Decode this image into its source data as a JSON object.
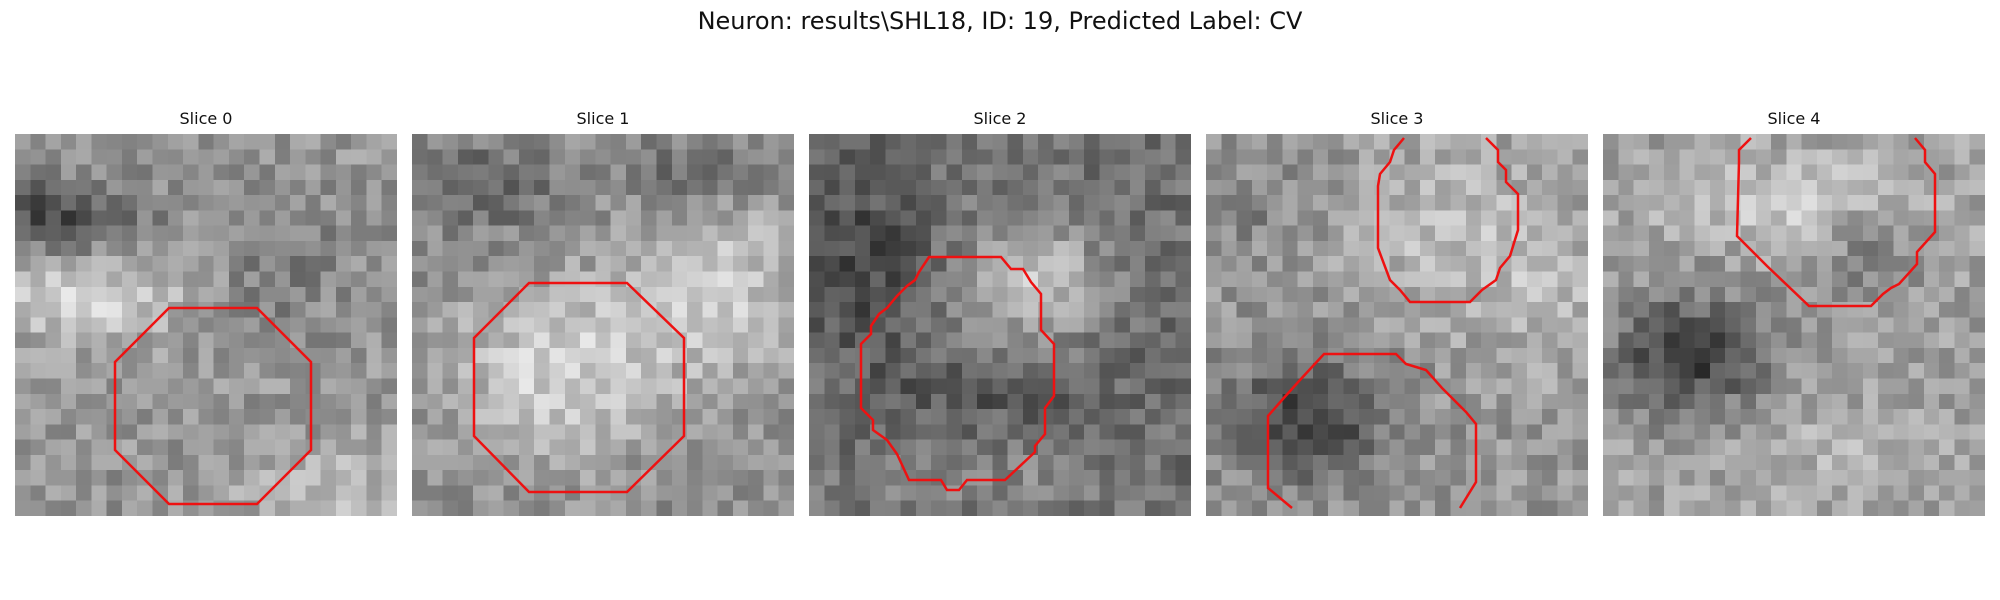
{
  "figure": {
    "title": "Neuron: results\\SHL18, ID: 19, Predicted Label: CV"
  },
  "panels": [
    {
      "title": "Slice 0"
    },
    {
      "title": "Slice 1"
    },
    {
      "title": "Slice 2"
    },
    {
      "title": "Slice 3"
    },
    {
      "title": "Slice 4"
    }
  ],
  "colors": {
    "contour": "#ee1111",
    "background": "#ffffff",
    "colormap": "grayscale"
  }
}
